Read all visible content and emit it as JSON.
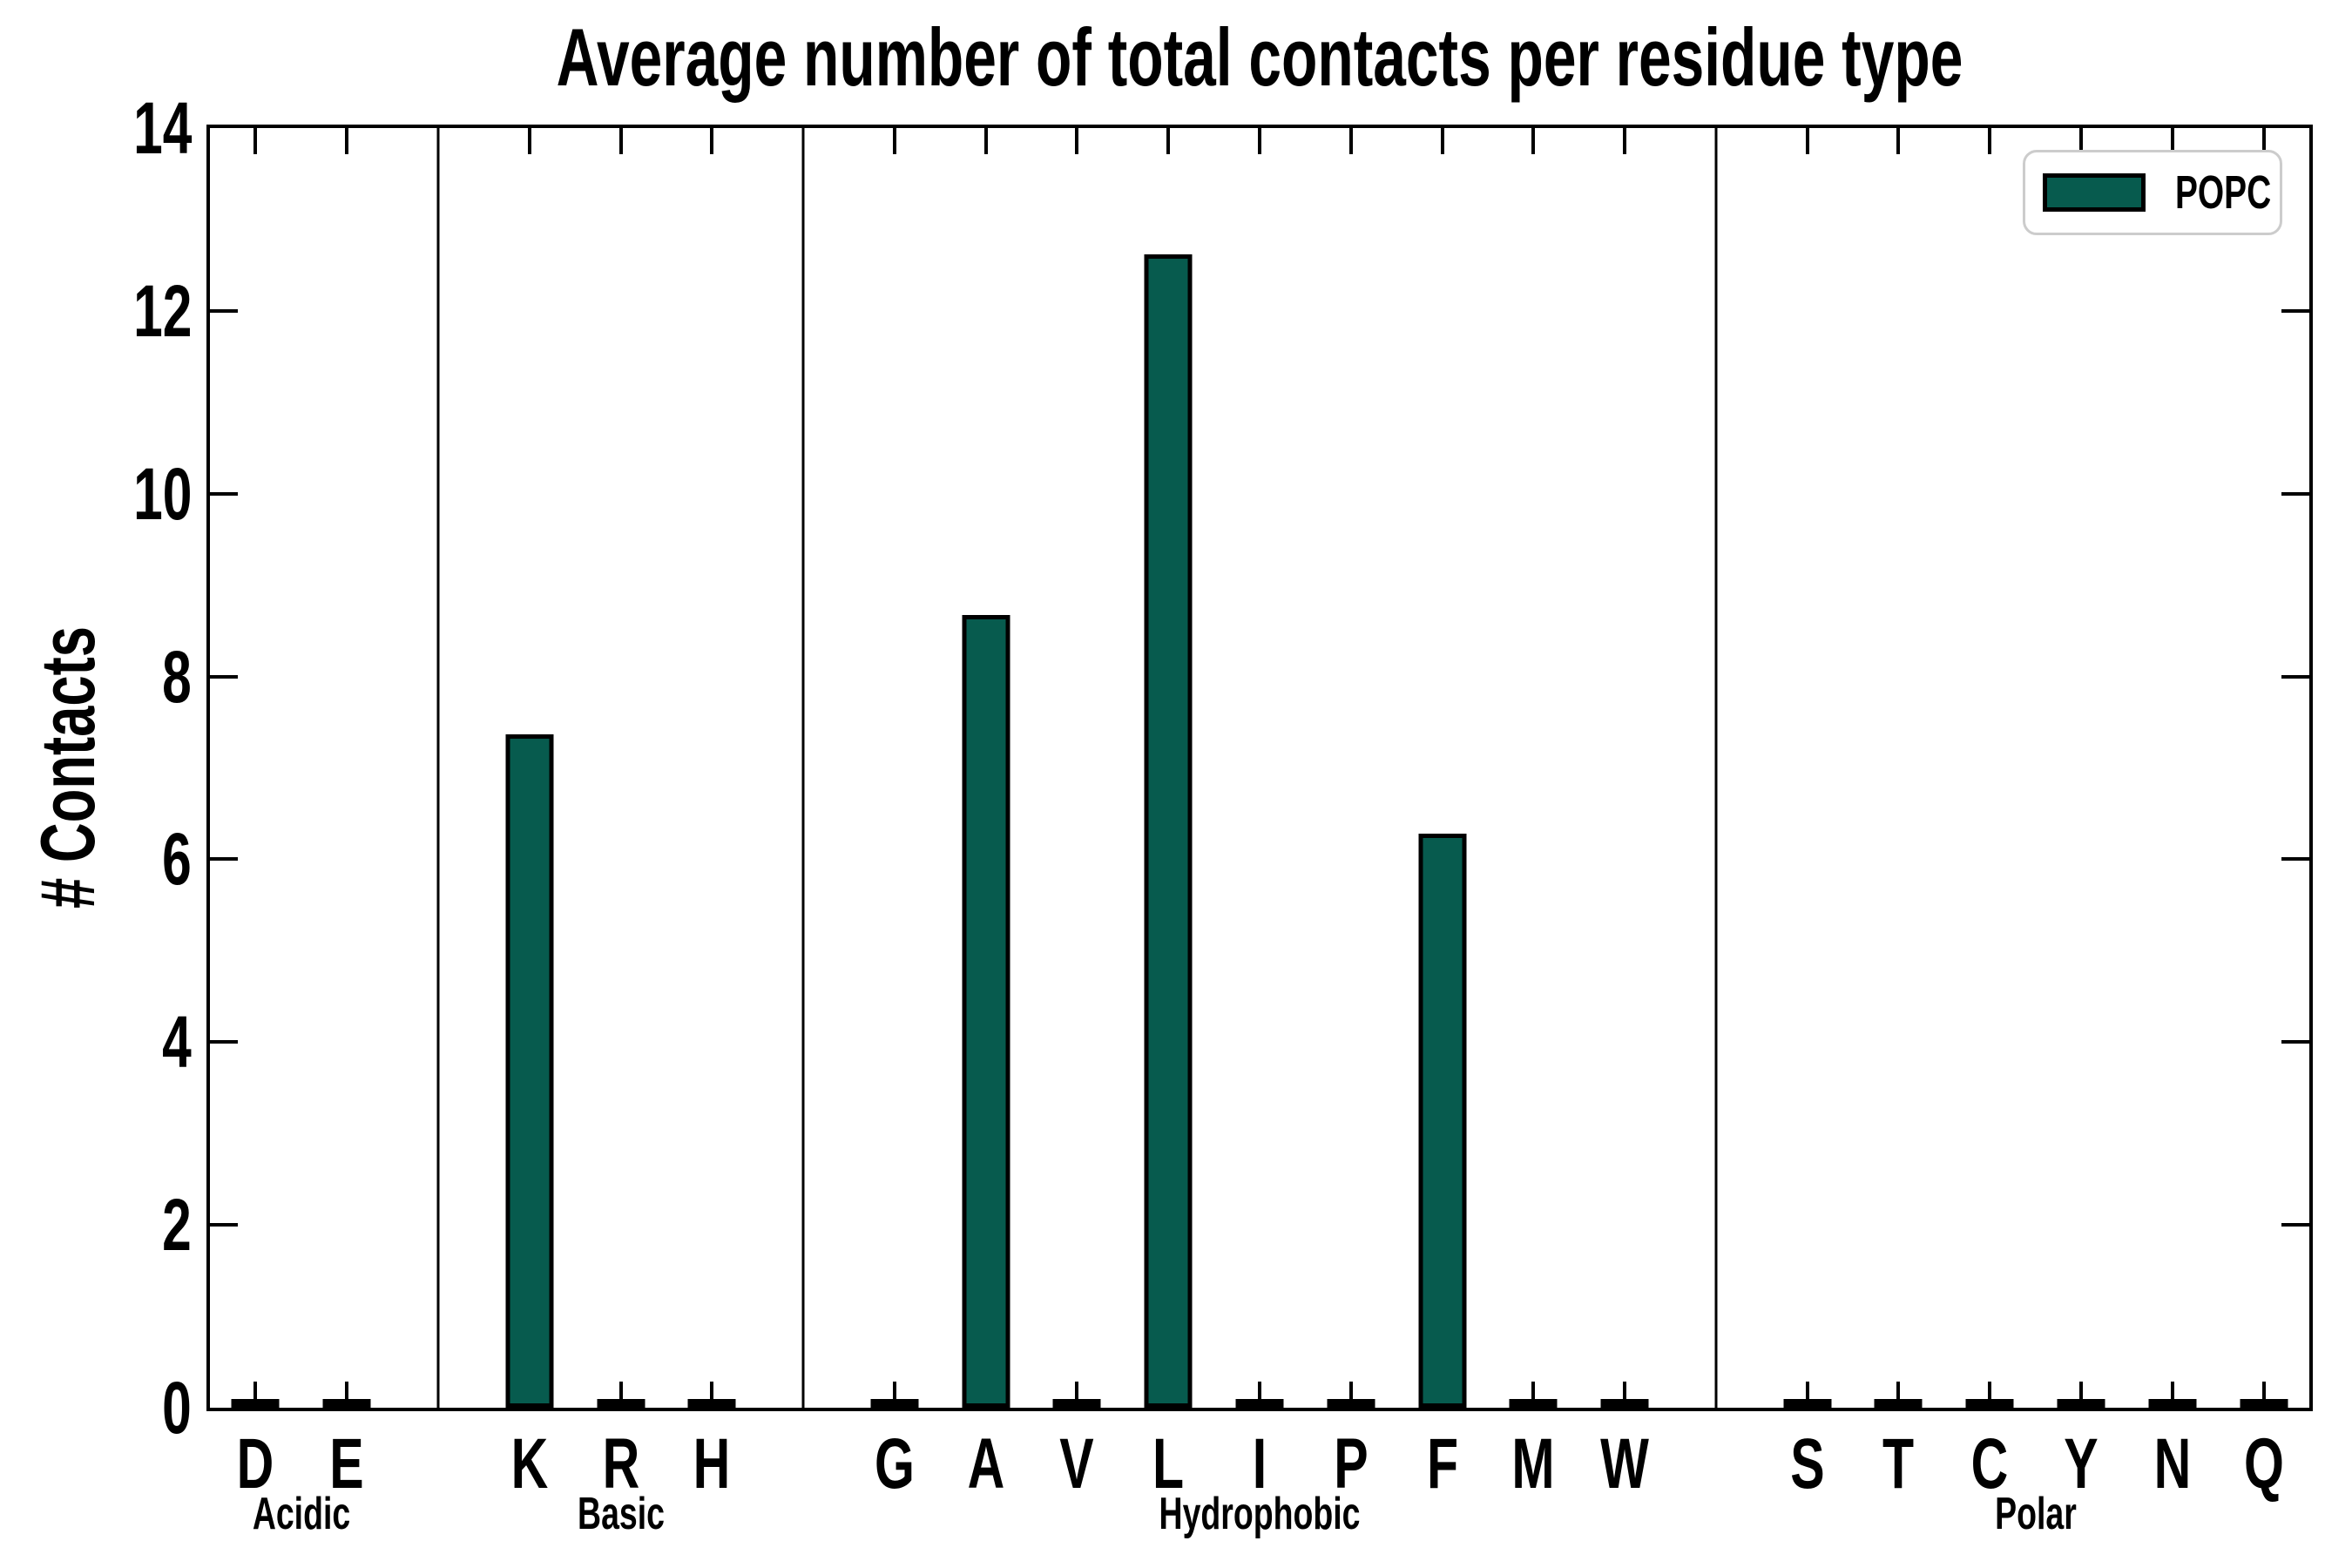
{
  "chart_data": {
    "type": "bar",
    "title": "Average number of total contacts per residue type",
    "ylabel": "# Contacts",
    "xlabel": "",
    "ylim": [
      0,
      14
    ],
    "yticks": [
      0,
      2,
      4,
      6,
      8,
      10,
      12,
      14
    ],
    "grid": false,
    "legend": {
      "position": "upper right",
      "entries": [
        "POPC"
      ]
    },
    "groups": [
      {
        "name": "Acidic",
        "categories": [
          "D",
          "E"
        ]
      },
      {
        "name": "Basic",
        "categories": [
          "K",
          "R",
          "H"
        ]
      },
      {
        "name": "Hydrophobic",
        "categories": [
          "G",
          "A",
          "V",
          "L",
          "I",
          "P",
          "F",
          "M",
          "W"
        ]
      },
      {
        "name": "Polar",
        "categories": [
          "S",
          "T",
          "C",
          "Y",
          "N",
          "Q"
        ]
      }
    ],
    "series": [
      {
        "name": "POPC",
        "values": {
          "D": 0.04,
          "E": 0.04,
          "K": 7.37,
          "R": 0.04,
          "H": 0.04,
          "G": 0.05,
          "A": 8.67,
          "V": 0.05,
          "L": 12.62,
          "I": 0.04,
          "P": 0.04,
          "F": 6.28,
          "M": 0.04,
          "W": 0.05,
          "S": 0.04,
          "T": 0.04,
          "C": 0.04,
          "Y": 0.05,
          "N": 0.04,
          "Q": 0.04
        }
      }
    ],
    "colors": {
      "bar_fill": "#075b4e",
      "bar_edge": "#000000",
      "axis": "#000000",
      "legend_border": "#cccccc",
      "background": "#ffffff"
    }
  }
}
